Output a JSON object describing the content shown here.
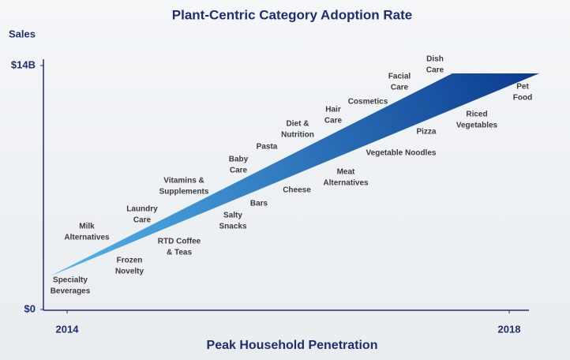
{
  "chart_data": {
    "type": "annotated-wedge",
    "title": "Plant-Centric Category Adoption Rate",
    "y_label": "Sales",
    "x_label": "Peak Household Penetration",
    "xlim": [
      2014,
      2018
    ],
    "xticks": [
      2014,
      2018
    ],
    "ylim": [
      0,
      14000000000
    ],
    "yticks": [
      {
        "value": 0,
        "label": "$0"
      },
      {
        "value": 14000000000,
        "label": "$14B"
      }
    ],
    "categories": [
      [
        "Specialty",
        "Beverages"
      ],
      [
        "Frozen",
        "Novelty"
      ],
      [
        "Milk",
        "Alternatives"
      ],
      [
        "Laundry",
        "Care"
      ],
      [
        "RTD Coffee",
        "& Teas"
      ],
      [
        "Vitamins &",
        "Supplements"
      ],
      [
        "Salty",
        "Snacks"
      ],
      [
        "Baby",
        "Care"
      ],
      [
        "Bars"
      ],
      [
        "Pasta"
      ],
      [
        "Cheese"
      ],
      [
        "Diet &",
        "Nutrition"
      ],
      [
        "Meat",
        "Alternatives"
      ],
      [
        "Hair",
        "Care"
      ],
      [
        "Cosmetics"
      ],
      [
        "Vegetable Noodles"
      ],
      [
        "Facial",
        "Care"
      ],
      [
        "Pizza"
      ],
      [
        "Dish",
        "Care"
      ],
      [
        "Riced",
        "Vegetables"
      ],
      [
        "Pet",
        "Food"
      ]
    ],
    "colors": [
      "#55b6ec",
      "#0a3a8e"
    ]
  }
}
